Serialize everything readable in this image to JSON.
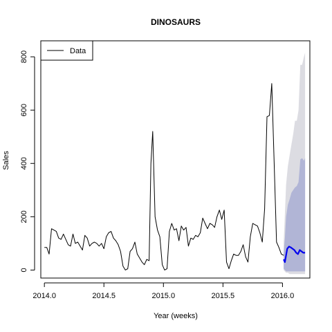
{
  "chart_data": {
    "type": "line",
    "title": "DINOSAURS",
    "xlabel": "Year (weeks)",
    "ylabel": "Sales",
    "xlim": [
      2013.97,
      2016.23
    ],
    "ylim": [
      -30,
      860
    ],
    "x_ticks": [
      2014.0,
      2014.5,
      2015.0,
      2015.5,
      2016.0
    ],
    "x_tick_labels": [
      "2014.0",
      "2014.5",
      "2015.0",
      "2015.5",
      "2016.0"
    ],
    "y_ticks": [
      0,
      200,
      400,
      600,
      800
    ],
    "y_tick_labels": [
      "0",
      "200",
      "400",
      "600",
      "800"
    ],
    "grid": false,
    "legend": {
      "position": "top-left",
      "entries": [
        {
          "label": "Data",
          "color": "#000000"
        }
      ]
    },
    "series": [
      {
        "name": "Data",
        "color": "#000000",
        "x": [
          2014.0,
          2014.02,
          2014.04,
          2014.06,
          2014.08,
          2014.1,
          2014.12,
          2014.14,
          2014.16,
          2014.18,
          2014.2,
          2014.22,
          2014.24,
          2014.26,
          2014.28,
          2014.3,
          2014.32,
          2014.34,
          2014.36,
          2014.38,
          2014.4,
          2014.42,
          2014.44,
          2014.46,
          2014.48,
          2014.5,
          2014.52,
          2014.54,
          2014.56,
          2014.58,
          2014.6,
          2014.62,
          2014.64,
          2014.66,
          2014.68,
          2014.7,
          2014.72,
          2014.74,
          2014.76,
          2014.78,
          2014.8,
          2014.82,
          2014.84,
          2014.86,
          2014.88,
          2014.895,
          2014.91,
          2014.93,
          2014.95,
          2014.97,
          2014.99,
          2015.01,
          2015.03,
          2015.05,
          2015.07,
          2015.09,
          2015.11,
          2015.13,
          2015.15,
          2015.17,
          2015.19,
          2015.21,
          2015.23,
          2015.25,
          2015.27,
          2015.29,
          2015.31,
          2015.33,
          2015.35,
          2015.37,
          2015.39,
          2015.41,
          2015.43,
          2015.45,
          2015.47,
          2015.49,
          2015.51,
          2015.53,
          2015.55,
          2015.57,
          2015.59,
          2015.61,
          2015.63,
          2015.65,
          2015.67,
          2015.69,
          2015.71,
          2015.73,
          2015.75,
          2015.77,
          2015.79,
          2015.81,
          2015.83,
          2015.85,
          2015.87,
          2015.89,
          2015.91,
          2015.93,
          2015.95,
          2015.97,
          2015.99,
          2016.01
        ],
        "values": [
          85,
          85,
          60,
          155,
          150,
          145,
          120,
          115,
          135,
          115,
          95,
          90,
          135,
          100,
          105,
          90,
          75,
          130,
          120,
          90,
          100,
          105,
          100,
          90,
          100,
          80,
          125,
          140,
          145,
          120,
          110,
          95,
          70,
          15,
          0,
          5,
          70,
          80,
          105,
          60,
          45,
          30,
          20,
          40,
          35,
          400,
          520,
          200,
          150,
          125,
          20,
          0,
          5,
          145,
          175,
          150,
          155,
          110,
          165,
          150,
          160,
          90,
          120,
          115,
          130,
          125,
          140,
          195,
          175,
          155,
          175,
          170,
          160,
          200,
          225,
          190,
          225,
          30,
          5,
          35,
          60,
          55,
          55,
          70,
          95,
          50,
          30,
          125,
          175,
          170,
          165,
          140,
          105,
          230,
          575,
          580,
          700,
          400,
          105,
          85,
          60,
          55
        ]
      },
      {
        "name": "",
        "color": "#0000ee",
        "x": [
          2016.01,
          2016.02,
          2016.03,
          2016.04,
          2016.055,
          2016.07,
          2016.085,
          2016.1,
          2016.115,
          2016.13,
          2016.145,
          2016.16,
          2016.175,
          2016.19
        ],
        "values": [
          40,
          30,
          55,
          80,
          88,
          85,
          80,
          75,
          65,
          60,
          75,
          70,
          65,
          65
        ]
      }
    ],
    "forecast_bands": [
      {
        "color": "#dcdce2",
        "x": [
          2016.01,
          2016.02,
          2016.03,
          2016.045,
          2016.06,
          2016.075,
          2016.09,
          2016.105,
          2016.12,
          2016.135,
          2016.15,
          2016.165,
          2016.18,
          2016.19
        ],
        "lower": [
          0,
          -5,
          -10,
          -10,
          -15,
          -15,
          -15,
          -15,
          -15,
          -15,
          -15,
          -15,
          -15,
          -15
        ],
        "upper": [
          100,
          210,
          320,
          390,
          430,
          470,
          510,
          560,
          560,
          600,
          770,
          770,
          800,
          815
        ]
      },
      {
        "color": "#b1b5d6",
        "x": [
          2016.01,
          2016.02,
          2016.03,
          2016.045,
          2016.06,
          2016.075,
          2016.09,
          2016.105,
          2016.12,
          2016.135,
          2016.15,
          2016.165,
          2016.18,
          2016.19
        ],
        "lower": [
          5,
          0,
          -5,
          -5,
          -5,
          -5,
          -5,
          -5,
          -5,
          -5,
          -5,
          -5,
          -5,
          -5
        ],
        "upper": [
          65,
          120,
          200,
          245,
          265,
          290,
          300,
          310,
          315,
          330,
          415,
          420,
          410,
          420
        ]
      }
    ]
  }
}
